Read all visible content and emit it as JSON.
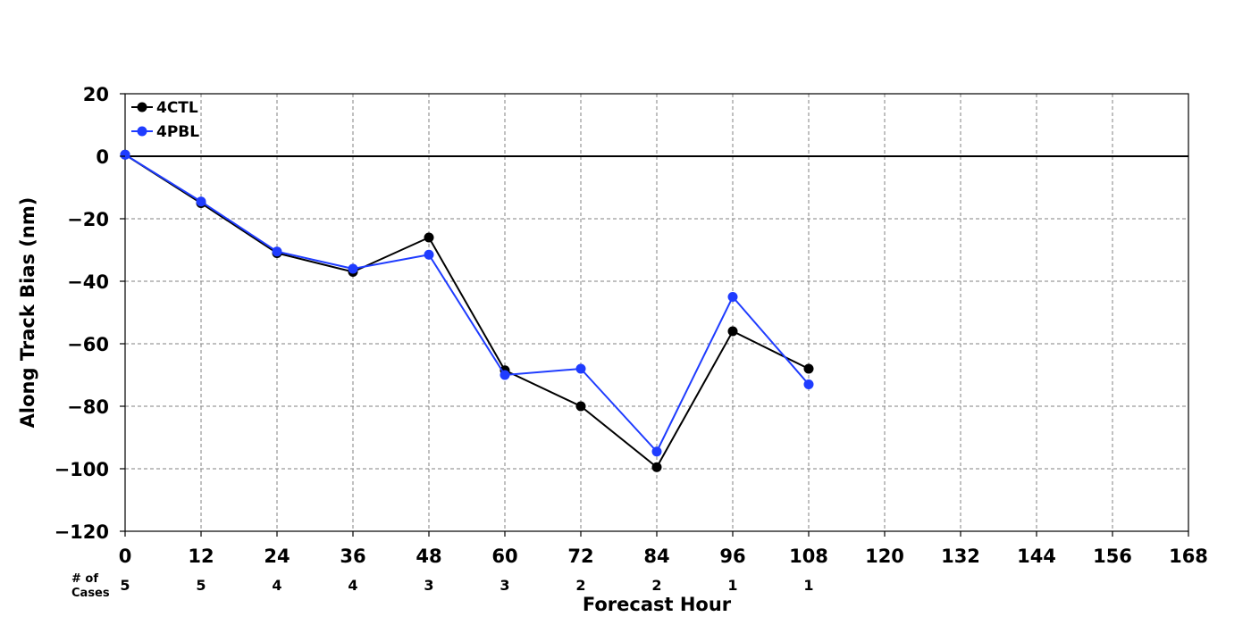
{
  "chart_data": {
    "type": "line",
    "xlabel": "Forecast Hour",
    "ylabel": "Along Track Bias (nm)",
    "xlim": [
      0,
      168
    ],
    "ylim": [
      -120,
      20
    ],
    "x_ticks": [
      0,
      12,
      24,
      36,
      48,
      60,
      72,
      84,
      96,
      108,
      120,
      132,
      144,
      156,
      168
    ],
    "y_ticks": [
      20,
      0,
      -20,
      -40,
      -60,
      -80,
      -100,
      -120
    ],
    "y_tick_labels": [
      "20",
      "0",
      "−20",
      "−40",
      "−60",
      "−80",
      "−100",
      "−120"
    ],
    "grid": true,
    "legend_position": "top-left",
    "series": [
      {
        "name": "4CTL",
        "color": "#000000",
        "x": [
          0,
          12,
          24,
          36,
          48,
          60,
          72,
          84,
          96,
          108
        ],
        "y": [
          0.5,
          -15,
          -31,
          -37,
          -26,
          -68.5,
          -80,
          -99.5,
          -56,
          -68
        ]
      },
      {
        "name": "4PBL",
        "color": "#1f3cff",
        "x": [
          0,
          12,
          24,
          36,
          48,
          60,
          72,
          84,
          96,
          108
        ],
        "y": [
          0.5,
          -14.5,
          -30.5,
          -36,
          -31.5,
          -70,
          -68,
          -94.5,
          -45,
          -73
        ]
      }
    ],
    "cases": {
      "title_line1": "# of",
      "title_line2": "Cases",
      "x": [
        0,
        12,
        24,
        36,
        48,
        60,
        72,
        84,
        96,
        108
      ],
      "counts": [
        "5",
        "5",
        "4",
        "4",
        "3",
        "3",
        "2",
        "2",
        "1",
        "1"
      ]
    }
  }
}
